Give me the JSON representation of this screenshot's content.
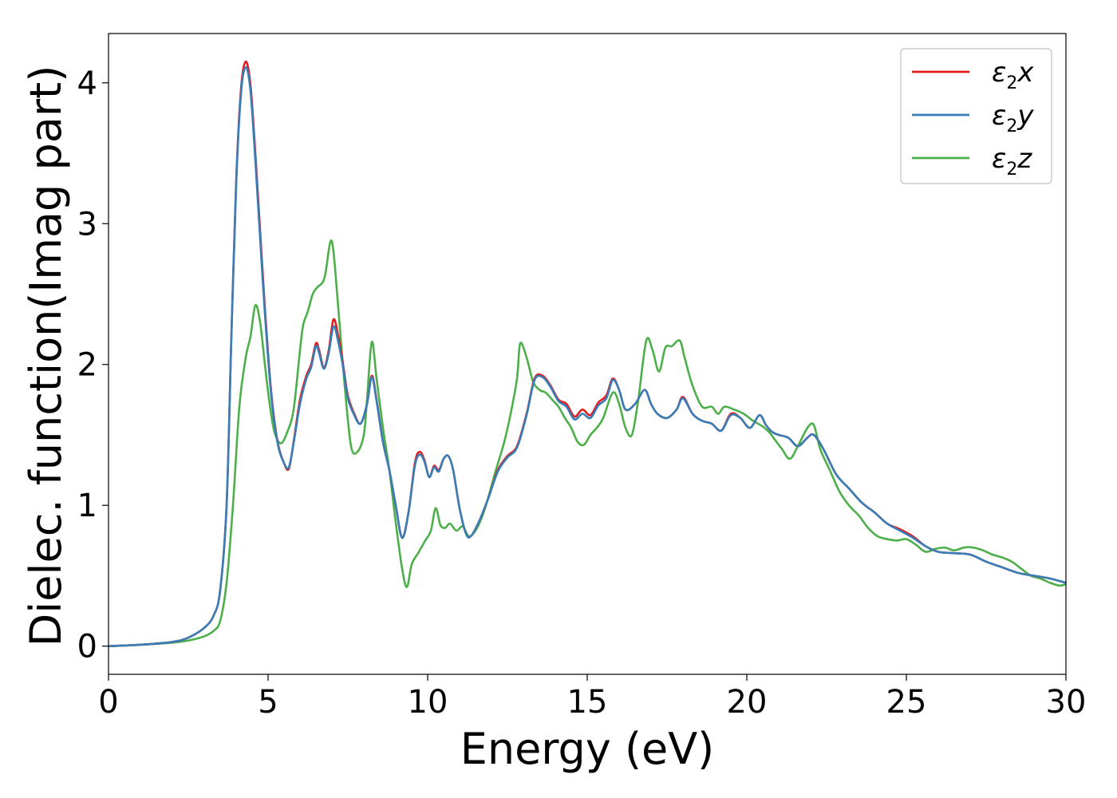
{
  "chart_data": {
    "type": "line",
    "title": "",
    "xlabel": "Energy (eV)",
    "ylabel": "Dielec. function(Imag part)",
    "xlim": [
      0,
      30
    ],
    "ylim": [
      -0.2,
      4.35
    ],
    "xticks": [
      0,
      5,
      10,
      15,
      20,
      25,
      30
    ],
    "yticks": [
      0,
      1,
      2,
      3,
      4
    ],
    "grid": false,
    "legend_position": "top-right",
    "series": [
      {
        "name": "ε₂x",
        "legend": {
          "symbol": "ε",
          "sub": "2",
          "var": "x"
        },
        "color": "#e41a1c",
        "x": [
          0,
          1,
          2,
          2.5,
          3,
          3.3,
          3.5,
          3.7,
          3.85,
          4.0,
          4.15,
          4.3,
          4.45,
          4.6,
          4.75,
          4.9,
          5.1,
          5.3,
          5.5,
          5.65,
          5.8,
          6.0,
          6.2,
          6.35,
          6.5,
          6.6,
          6.75,
          6.9,
          7.05,
          7.2,
          7.35,
          7.5,
          7.7,
          7.9,
          8.1,
          8.25,
          8.4,
          8.6,
          8.8,
          9.0,
          9.2,
          9.4,
          9.6,
          9.75,
          9.9,
          10.05,
          10.2,
          10.35,
          10.5,
          10.65,
          10.8,
          11.0,
          11.2,
          11.35,
          11.6,
          11.9,
          12.2,
          12.5,
          12.8,
          13.1,
          13.35,
          13.6,
          13.85,
          14.1,
          14.35,
          14.6,
          14.85,
          15.1,
          15.35,
          15.6,
          15.8,
          16.0,
          16.2,
          16.5,
          16.8,
          17.0,
          17.2,
          17.5,
          17.8,
          18.0,
          18.3,
          18.6,
          18.9,
          19.2,
          19.5,
          19.8,
          20.1,
          20.4,
          20.6,
          20.8,
          21.0,
          21.3,
          21.6,
          21.9,
          22.1,
          22.4,
          22.8,
          23.2,
          23.6,
          24.0,
          24.4,
          24.8,
          25.2,
          25.6,
          26.0,
          26.5,
          27.0,
          27.5,
          28.0,
          28.5,
          29.0,
          29.5,
          30.0
        ],
        "y": [
          0,
          0.01,
          0.03,
          0.06,
          0.13,
          0.22,
          0.4,
          1.0,
          2.2,
          3.3,
          3.95,
          4.15,
          3.98,
          3.5,
          2.95,
          2.4,
          1.8,
          1.45,
          1.3,
          1.26,
          1.45,
          1.75,
          1.92,
          2.0,
          2.15,
          2.1,
          1.98,
          2.1,
          2.32,
          2.2,
          2.0,
          1.78,
          1.65,
          1.58,
          1.72,
          1.92,
          1.75,
          1.45,
          1.25,
          1.0,
          0.77,
          0.95,
          1.3,
          1.38,
          1.32,
          1.2,
          1.28,
          1.25,
          1.33,
          1.35,
          1.25,
          0.98,
          0.8,
          0.78,
          0.88,
          1.05,
          1.25,
          1.35,
          1.42,
          1.65,
          1.9,
          1.92,
          1.85,
          1.75,
          1.72,
          1.63,
          1.68,
          1.64,
          1.73,
          1.78,
          1.9,
          1.82,
          1.68,
          1.72,
          1.82,
          1.72,
          1.65,
          1.62,
          1.68,
          1.77,
          1.65,
          1.6,
          1.58,
          1.53,
          1.65,
          1.62,
          1.55,
          1.64,
          1.57,
          1.52,
          1.5,
          1.48,
          1.42,
          1.48,
          1.5,
          1.4,
          1.22,
          1.12,
          1.02,
          0.95,
          0.87,
          0.83,
          0.78,
          0.71,
          0.67,
          0.66,
          0.65,
          0.6,
          0.56,
          0.52,
          0.5,
          0.48,
          0.45
        ]
      },
      {
        "name": "ε₂y",
        "legend": {
          "symbol": "ε",
          "sub": "2",
          "var": "y"
        },
        "color": "#377eb8",
        "x": [
          0,
          1,
          2,
          2.5,
          3,
          3.3,
          3.5,
          3.7,
          3.85,
          4.0,
          4.15,
          4.3,
          4.45,
          4.6,
          4.75,
          4.9,
          5.1,
          5.3,
          5.5,
          5.65,
          5.8,
          6.0,
          6.2,
          6.35,
          6.5,
          6.6,
          6.75,
          6.9,
          7.05,
          7.2,
          7.35,
          7.5,
          7.7,
          7.9,
          8.1,
          8.25,
          8.4,
          8.6,
          8.8,
          9.0,
          9.2,
          9.4,
          9.6,
          9.75,
          9.9,
          10.05,
          10.2,
          10.35,
          10.5,
          10.65,
          10.8,
          11.0,
          11.2,
          11.35,
          11.6,
          11.9,
          12.2,
          12.5,
          12.8,
          13.1,
          13.35,
          13.6,
          13.85,
          14.1,
          14.35,
          14.6,
          14.85,
          15.1,
          15.35,
          15.6,
          15.8,
          16.0,
          16.2,
          16.5,
          16.8,
          17.0,
          17.2,
          17.5,
          17.8,
          18.0,
          18.3,
          18.6,
          18.9,
          19.2,
          19.5,
          19.8,
          20.1,
          20.4,
          20.6,
          20.8,
          21.0,
          21.3,
          21.6,
          21.9,
          22.1,
          22.4,
          22.8,
          23.2,
          23.6,
          24.0,
          24.4,
          24.8,
          25.2,
          25.6,
          26.0,
          26.5,
          27.0,
          27.5,
          28.0,
          28.5,
          29.0,
          29.5,
          30.0
        ],
        "y": [
          0,
          0.01,
          0.03,
          0.06,
          0.13,
          0.22,
          0.4,
          1.0,
          2.2,
          3.28,
          3.92,
          4.11,
          3.94,
          3.45,
          2.9,
          2.36,
          1.78,
          1.44,
          1.3,
          1.27,
          1.44,
          1.72,
          1.9,
          1.98,
          2.13,
          2.08,
          1.97,
          2.08,
          2.27,
          2.16,
          1.98,
          1.76,
          1.64,
          1.58,
          1.72,
          1.91,
          1.74,
          1.45,
          1.25,
          1.0,
          0.77,
          0.95,
          1.28,
          1.36,
          1.31,
          1.2,
          1.27,
          1.24,
          1.33,
          1.35,
          1.25,
          0.98,
          0.8,
          0.78,
          0.88,
          1.05,
          1.24,
          1.34,
          1.41,
          1.64,
          1.89,
          1.91,
          1.84,
          1.74,
          1.7,
          1.61,
          1.65,
          1.62,
          1.71,
          1.76,
          1.89,
          1.82,
          1.68,
          1.72,
          1.82,
          1.72,
          1.65,
          1.62,
          1.68,
          1.76,
          1.65,
          1.6,
          1.58,
          1.53,
          1.64,
          1.62,
          1.55,
          1.64,
          1.57,
          1.52,
          1.5,
          1.48,
          1.42,
          1.48,
          1.5,
          1.4,
          1.22,
          1.12,
          1.02,
          0.95,
          0.87,
          0.82,
          0.77,
          0.71,
          0.67,
          0.66,
          0.65,
          0.6,
          0.56,
          0.52,
          0.5,
          0.48,
          0.45
        ]
      },
      {
        "name": "ε₂z",
        "legend": {
          "symbol": "ε",
          "sub": "2",
          "var": "z"
        },
        "color": "#4daf4a",
        "x": [
          0,
          1,
          2,
          2.5,
          3,
          3.3,
          3.5,
          3.7,
          3.9,
          4.1,
          4.3,
          4.45,
          4.6,
          4.75,
          4.9,
          5.05,
          5.2,
          5.4,
          5.6,
          5.8,
          6.0,
          6.1,
          6.25,
          6.4,
          6.55,
          6.7,
          6.8,
          6.95,
          7.05,
          7.2,
          7.4,
          7.6,
          7.8,
          8.0,
          8.1,
          8.25,
          8.4,
          8.6,
          8.8,
          9.0,
          9.2,
          9.35,
          9.5,
          9.7,
          9.9,
          10.1,
          10.25,
          10.4,
          10.55,
          10.7,
          10.9,
          11.1,
          11.3,
          11.55,
          11.8,
          12.1,
          12.4,
          12.6,
          12.8,
          12.9,
          13.1,
          13.3,
          13.5,
          13.7,
          13.9,
          14.1,
          14.3,
          14.5,
          14.7,
          14.9,
          15.1,
          15.3,
          15.5,
          15.8,
          16.0,
          16.2,
          16.4,
          16.6,
          16.85,
          17.05,
          17.25,
          17.45,
          17.65,
          17.9,
          18.05,
          18.3,
          18.6,
          18.9,
          19.1,
          19.3,
          19.6,
          19.9,
          20.2,
          20.5,
          20.7,
          20.9,
          21.1,
          21.35,
          21.6,
          21.9,
          22.1,
          22.3,
          22.6,
          22.9,
          23.2,
          23.5,
          23.8,
          24.1,
          24.4,
          24.7,
          25.0,
          25.3,
          25.6,
          25.9,
          26.2,
          26.5,
          26.8,
          27.1,
          27.4,
          27.7,
          28.0,
          28.3,
          28.6,
          28.9,
          29.2,
          29.5,
          29.8,
          30.0
        ],
        "y": [
          0,
          0.01,
          0.025,
          0.04,
          0.07,
          0.11,
          0.18,
          0.45,
          1.0,
          1.7,
          2.05,
          2.2,
          2.42,
          2.3,
          2.0,
          1.72,
          1.52,
          1.44,
          1.52,
          1.68,
          2.1,
          2.28,
          2.38,
          2.5,
          2.55,
          2.58,
          2.65,
          2.87,
          2.8,
          2.4,
          1.85,
          1.42,
          1.38,
          1.5,
          1.75,
          2.16,
          1.9,
          1.55,
          1.25,
          0.88,
          0.55,
          0.42,
          0.58,
          0.66,
          0.74,
          0.82,
          0.98,
          0.86,
          0.84,
          0.87,
          0.82,
          0.85,
          0.78,
          0.84,
          0.98,
          1.22,
          1.45,
          1.65,
          1.9,
          2.15,
          2.05,
          1.88,
          1.82,
          1.8,
          1.75,
          1.7,
          1.62,
          1.55,
          1.45,
          1.43,
          1.5,
          1.55,
          1.62,
          1.8,
          1.72,
          1.55,
          1.5,
          1.75,
          2.17,
          2.1,
          1.95,
          2.12,
          2.13,
          2.17,
          2.05,
          1.85,
          1.7,
          1.7,
          1.65,
          1.7,
          1.68,
          1.65,
          1.6,
          1.56,
          1.52,
          1.46,
          1.4,
          1.33,
          1.42,
          1.55,
          1.57,
          1.4,
          1.25,
          1.1,
          1.0,
          0.93,
          0.84,
          0.78,
          0.76,
          0.75,
          0.76,
          0.72,
          0.67,
          0.69,
          0.7,
          0.68,
          0.7,
          0.7,
          0.68,
          0.65,
          0.63,
          0.6,
          0.55,
          0.5,
          0.48,
          0.45,
          0.43,
          0.44
        ]
      }
    ]
  }
}
